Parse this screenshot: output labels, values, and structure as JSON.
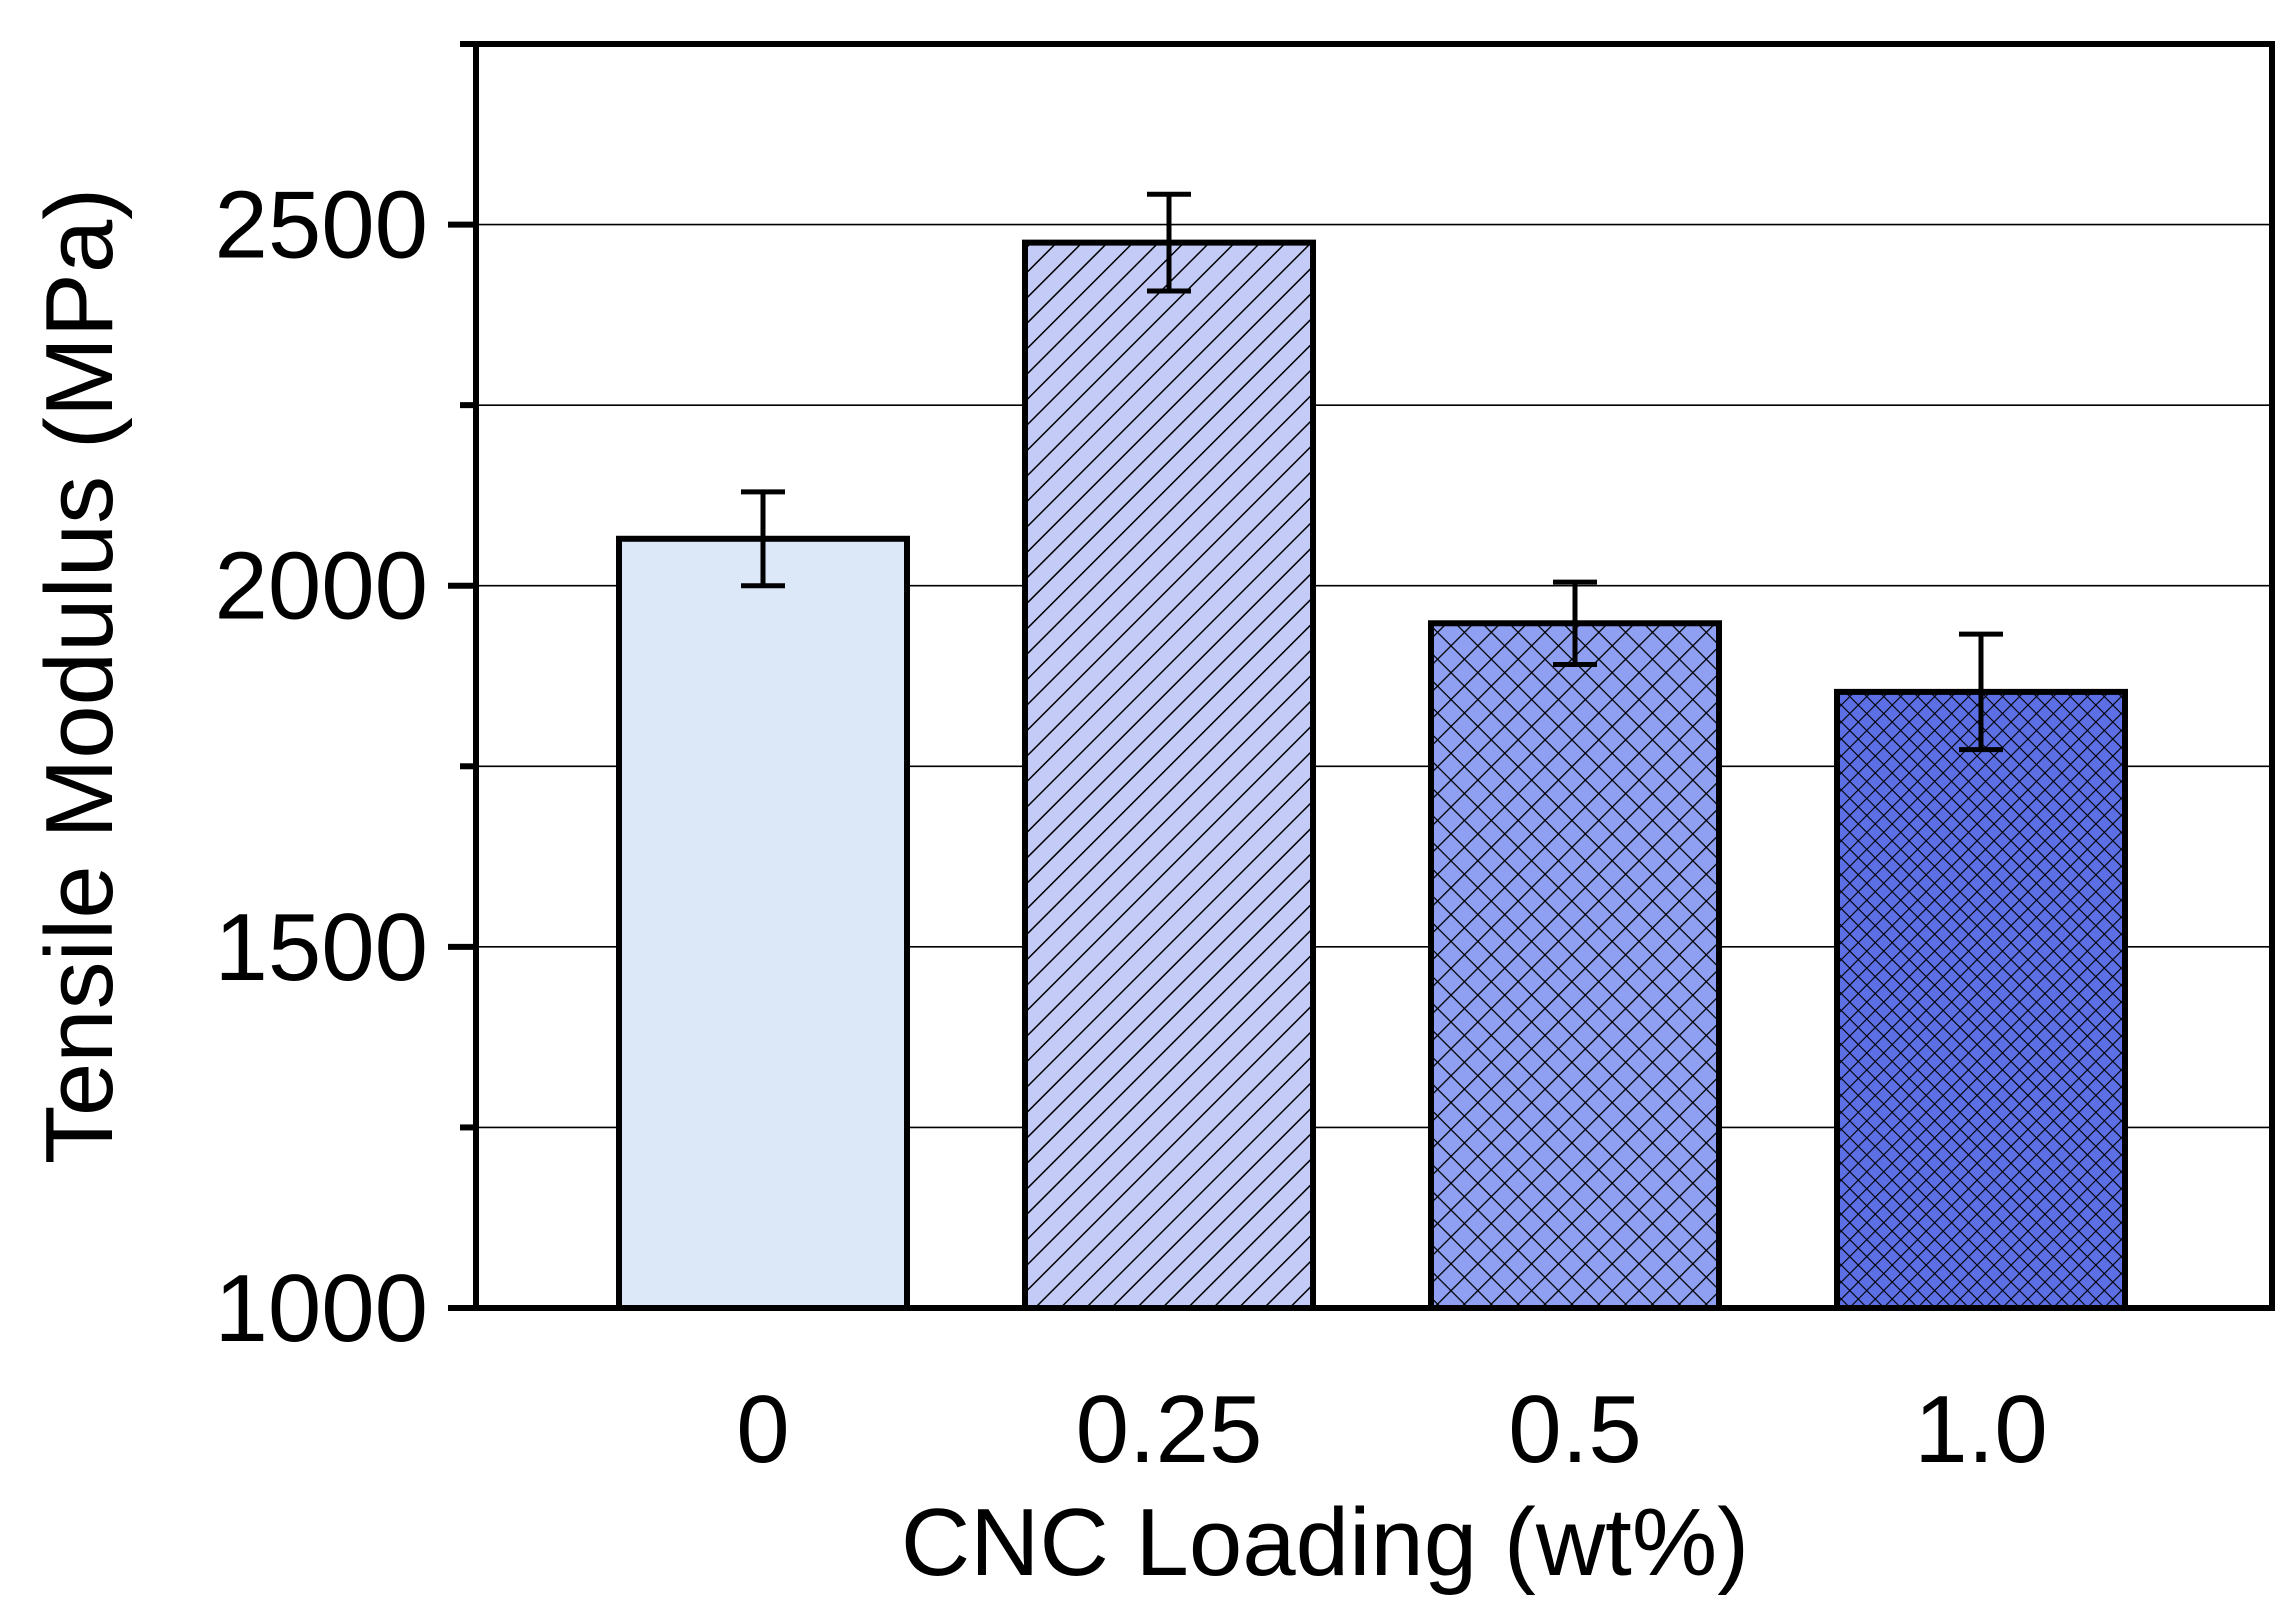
{
  "chart_data": {
    "type": "bar",
    "title": "",
    "xlabel": "CNC Loading (wt%)",
    "ylabel": "Tensile Modulus (MPa)",
    "categories": [
      "0",
      "0.25",
      "0.5",
      "1.0"
    ],
    "values": [
      2065,
      2475,
      1948,
      1853
    ],
    "errors": [
      65,
      67,
      57,
      80
    ],
    "ylim": [
      1000,
      2750
    ],
    "yticks": [
      1000,
      1500,
      2000,
      2500
    ],
    "ytick_labels": [
      "1000",
      "1500",
      "2000",
      "2500"
    ],
    "minor_yticks": [
      1250,
      1750,
      2250
    ],
    "grid": true,
    "bar_fills": [
      "#dce8f7",
      "#c3cbf6",
      "#8fa0f2",
      "#5c6fe4"
    ],
    "bar_patterns": [
      "solid",
      "diagonal-hatch",
      "cross-hatch",
      "dense-cross-hatch"
    ]
  }
}
